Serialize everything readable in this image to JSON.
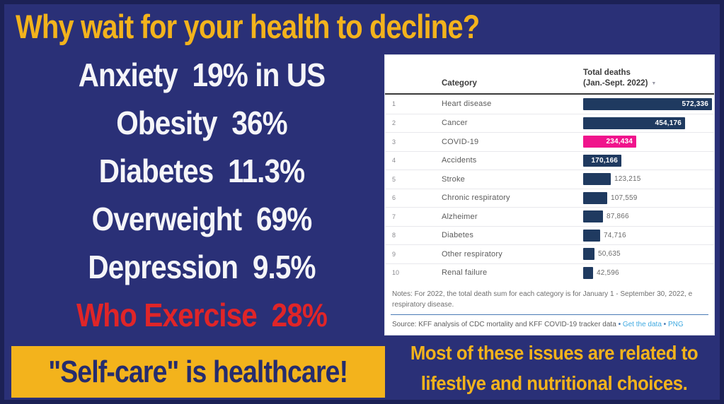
{
  "headline": {
    "text": "Why wait for your health to decline?"
  },
  "stats": [
    {
      "text": "Anxiety  19% in US",
      "color": "white"
    },
    {
      "text": "Obesity  36%",
      "color": "white"
    },
    {
      "text": "Diabetes  11.3%",
      "color": "white"
    },
    {
      "text": "Overweight  69%",
      "color": "white"
    },
    {
      "text": "Depression  9.5%",
      "color": "white"
    },
    {
      "text": "Who Exercise  28%",
      "color": "red"
    }
  ],
  "banner": {
    "text": "\"Self-care\" is healthcare!"
  },
  "footnote": {
    "line1": "Most of these issues are related to",
    "line2": "lifestlye and nutritional choices."
  },
  "colors": {
    "background": "#2A3077",
    "frame": "#1C2155",
    "gold": "#F3B31C",
    "red": "#E02528",
    "bar_navy": "#1F3A60",
    "highlight_pink": "#F0148C",
    "link_blue": "#3FA9E1"
  },
  "chart_data": {
    "type": "bar",
    "orientation": "horizontal",
    "category_header": "Category",
    "value_header_line1": "Total deaths",
    "value_header_line2": "(Jan.-Sept. 2022)",
    "sort_indicator": "▼",
    "categories": [
      "Heart disease",
      "Cancer",
      "COVID-19",
      "Accidents",
      "Stroke",
      "Chronic respiratory",
      "Alzheimer",
      "Diabetes",
      "Other respiratory",
      "Renal failure"
    ],
    "values": [
      572336,
      454176,
      234434,
      170166,
      123215,
      107559,
      87866,
      74716,
      50635,
      42596
    ],
    "ranks": [
      "1",
      "2",
      "3",
      "4",
      "5",
      "6",
      "7",
      "8",
      "9",
      "10"
    ],
    "highlight_category": "COVID-19",
    "bar_color": "#1F3A60",
    "highlight_color": "#F0148C",
    "xlim": [
      0,
      572336
    ],
    "grid": false,
    "legend": false,
    "notes_line1": "Notes: For 2022, the total death sum for each category is for January 1 - September 30, 2022, e",
    "notes_line2": "respiratory disease.",
    "source_prefix": "Source: KFF analysis of CDC mortality and KFF COVID-19 tracker data",
    "source_links": [
      "Get the data",
      "PNG"
    ],
    "link_separator": "•"
  }
}
